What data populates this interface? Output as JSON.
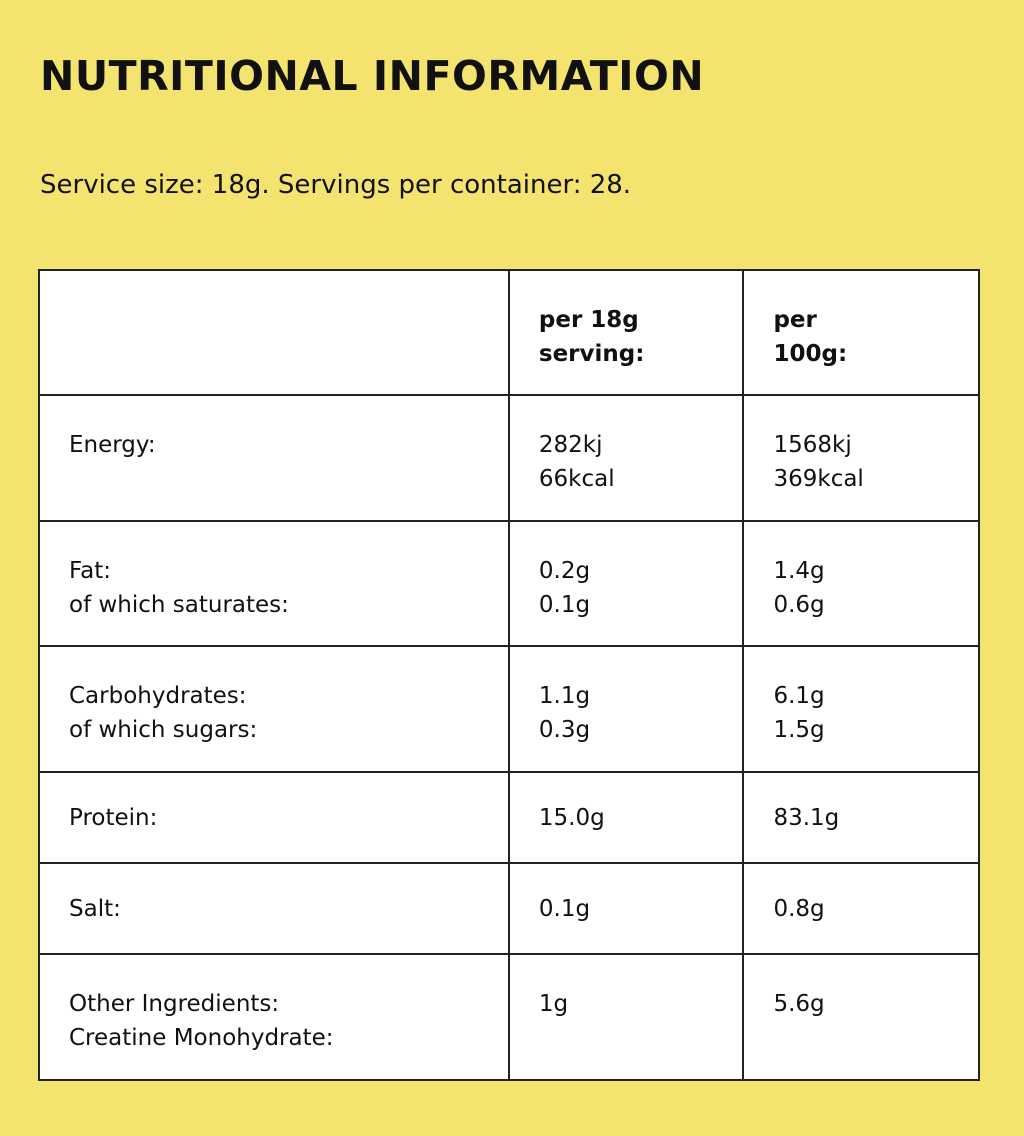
{
  "header": {
    "title": "NUTRITIONAL INFORMATION",
    "subtitle": "Service size: 18g. Servings per container: 28."
  },
  "table": {
    "columns": [
      "per 18g serving:",
      "per 100g:"
    ],
    "rows": [
      {
        "label": [
          "Energy:"
        ],
        "per_serving": [
          "282kj",
          "66kcal"
        ],
        "per_100g": [
          "1568kj",
          "369kcal"
        ]
      },
      {
        "label": [
          "Fat:",
          "of which saturates:"
        ],
        "per_serving": [
          "0.2g",
          "0.1g"
        ],
        "per_100g": [
          "1.4g",
          "0.6g"
        ]
      },
      {
        "label": [
          "Carbohydrates:",
          "of which sugars:"
        ],
        "per_serving": [
          "1.1g",
          "0.3g"
        ],
        "per_100g": [
          "6.1g",
          "1.5g"
        ]
      },
      {
        "label": [
          "Protein:"
        ],
        "per_serving": [
          "15.0g"
        ],
        "per_100g": [
          "83.1g"
        ]
      },
      {
        "label": [
          "Salt:"
        ],
        "per_serving": [
          "0.1g"
        ],
        "per_100g": [
          "0.8g"
        ]
      },
      {
        "label": [
          "Other Ingredients:",
          "Creatine Monohydrate:"
        ],
        "per_serving": [
          "1g"
        ],
        "per_100g": [
          "5.6g"
        ]
      }
    ]
  }
}
